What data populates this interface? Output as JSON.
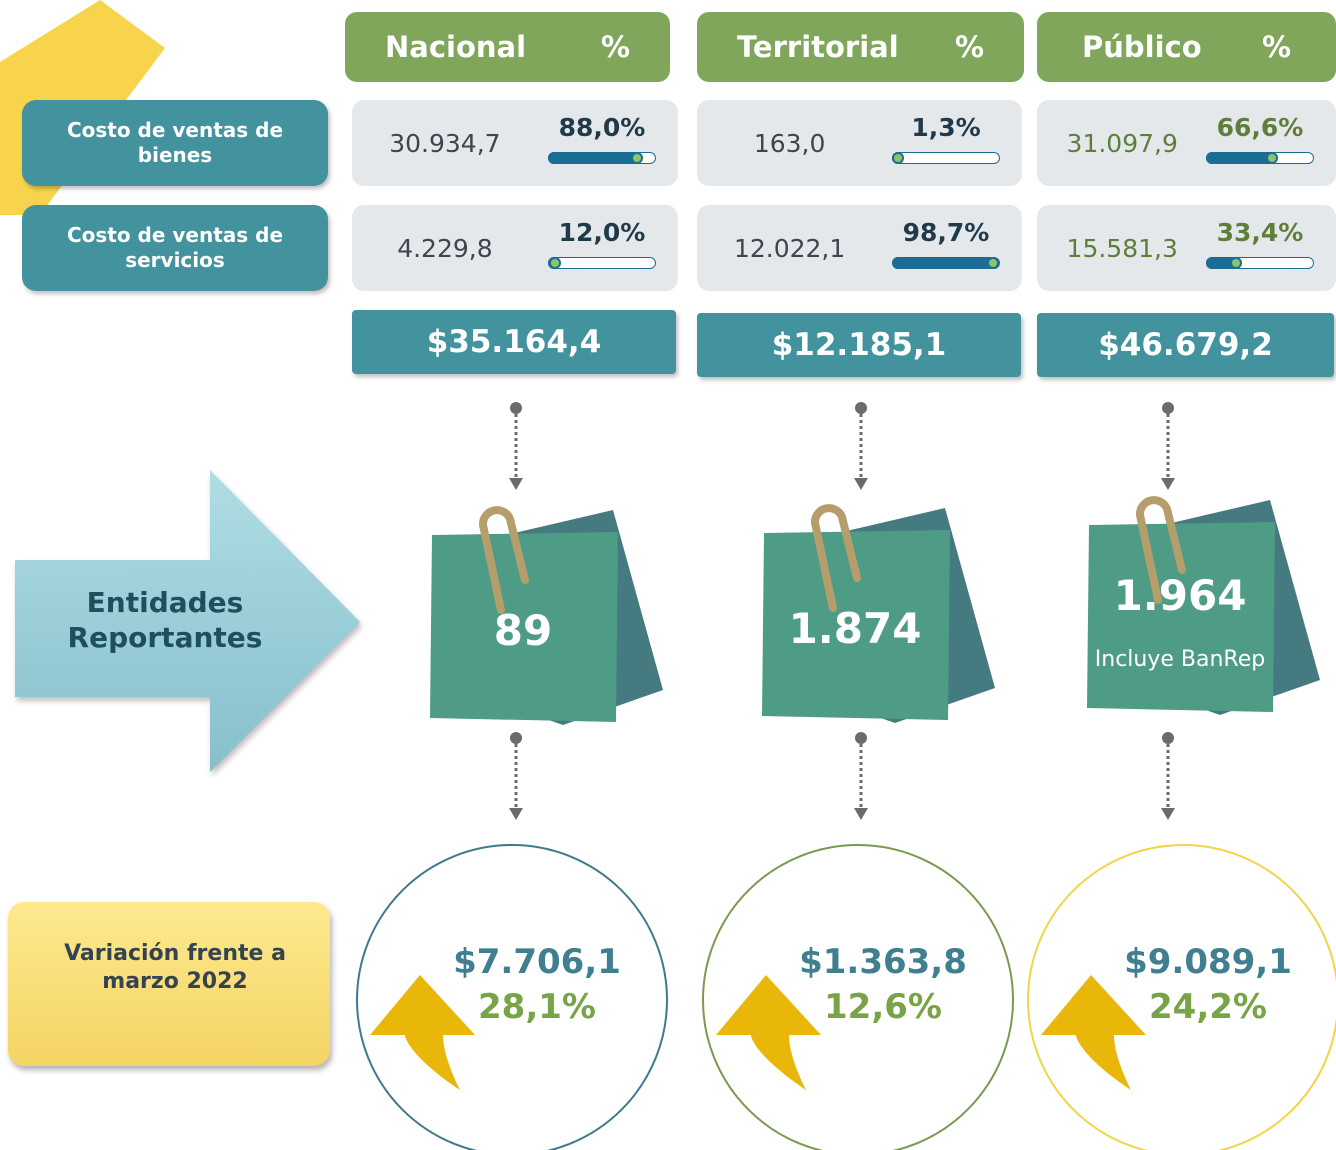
{
  "row_labels": [
    "Costo de ventas de bienes",
    "Costo de ventas de servicios"
  ],
  "entities_label": "Entidades Reportantes",
  "variation_label": "Variación frente a marzo 2022",
  "columns": [
    {
      "name": "Nacional",
      "pct_header": "%",
      "rows": [
        {
          "amount": "30.934,7",
          "share": {
            "value": 88.0,
            "label": "88,0%"
          }
        },
        {
          "amount": "4.229,8",
          "share": {
            "value": 12.0,
            "label": "12,0%"
          }
        }
      ],
      "total": "$35.164,4",
      "entities": "89",
      "variation": {
        "amount": "$7.706,1",
        "percent": "28,1%"
      }
    },
    {
      "name": "Territorial",
      "pct_header": "%",
      "rows": [
        {
          "amount": "163,0",
          "share": {
            "value": 1.3,
            "label": "1,3%"
          }
        },
        {
          "amount": "12.022,1",
          "share": {
            "value": 98.7,
            "label": "98,7%"
          }
        }
      ],
      "total": "$12.185,1",
      "entities": "1.874",
      "variation": {
        "amount": "$1.363,8",
        "percent": "12,6%"
      }
    },
    {
      "name": "Público",
      "pct_header": "%",
      "rows": [
        {
          "amount": "31.097,9",
          "share": {
            "value": 66.6,
            "label": "66,6%"
          }
        },
        {
          "amount": "15.581,3",
          "share": {
            "value": 33.4,
            "label": "33,4%"
          }
        }
      ],
      "total": "$46.679,2",
      "entities": "1.964",
      "entities_note": "Incluye BanRep",
      "variation": {
        "amount": "$9.089,1",
        "percent": "24,2%"
      }
    }
  ]
}
